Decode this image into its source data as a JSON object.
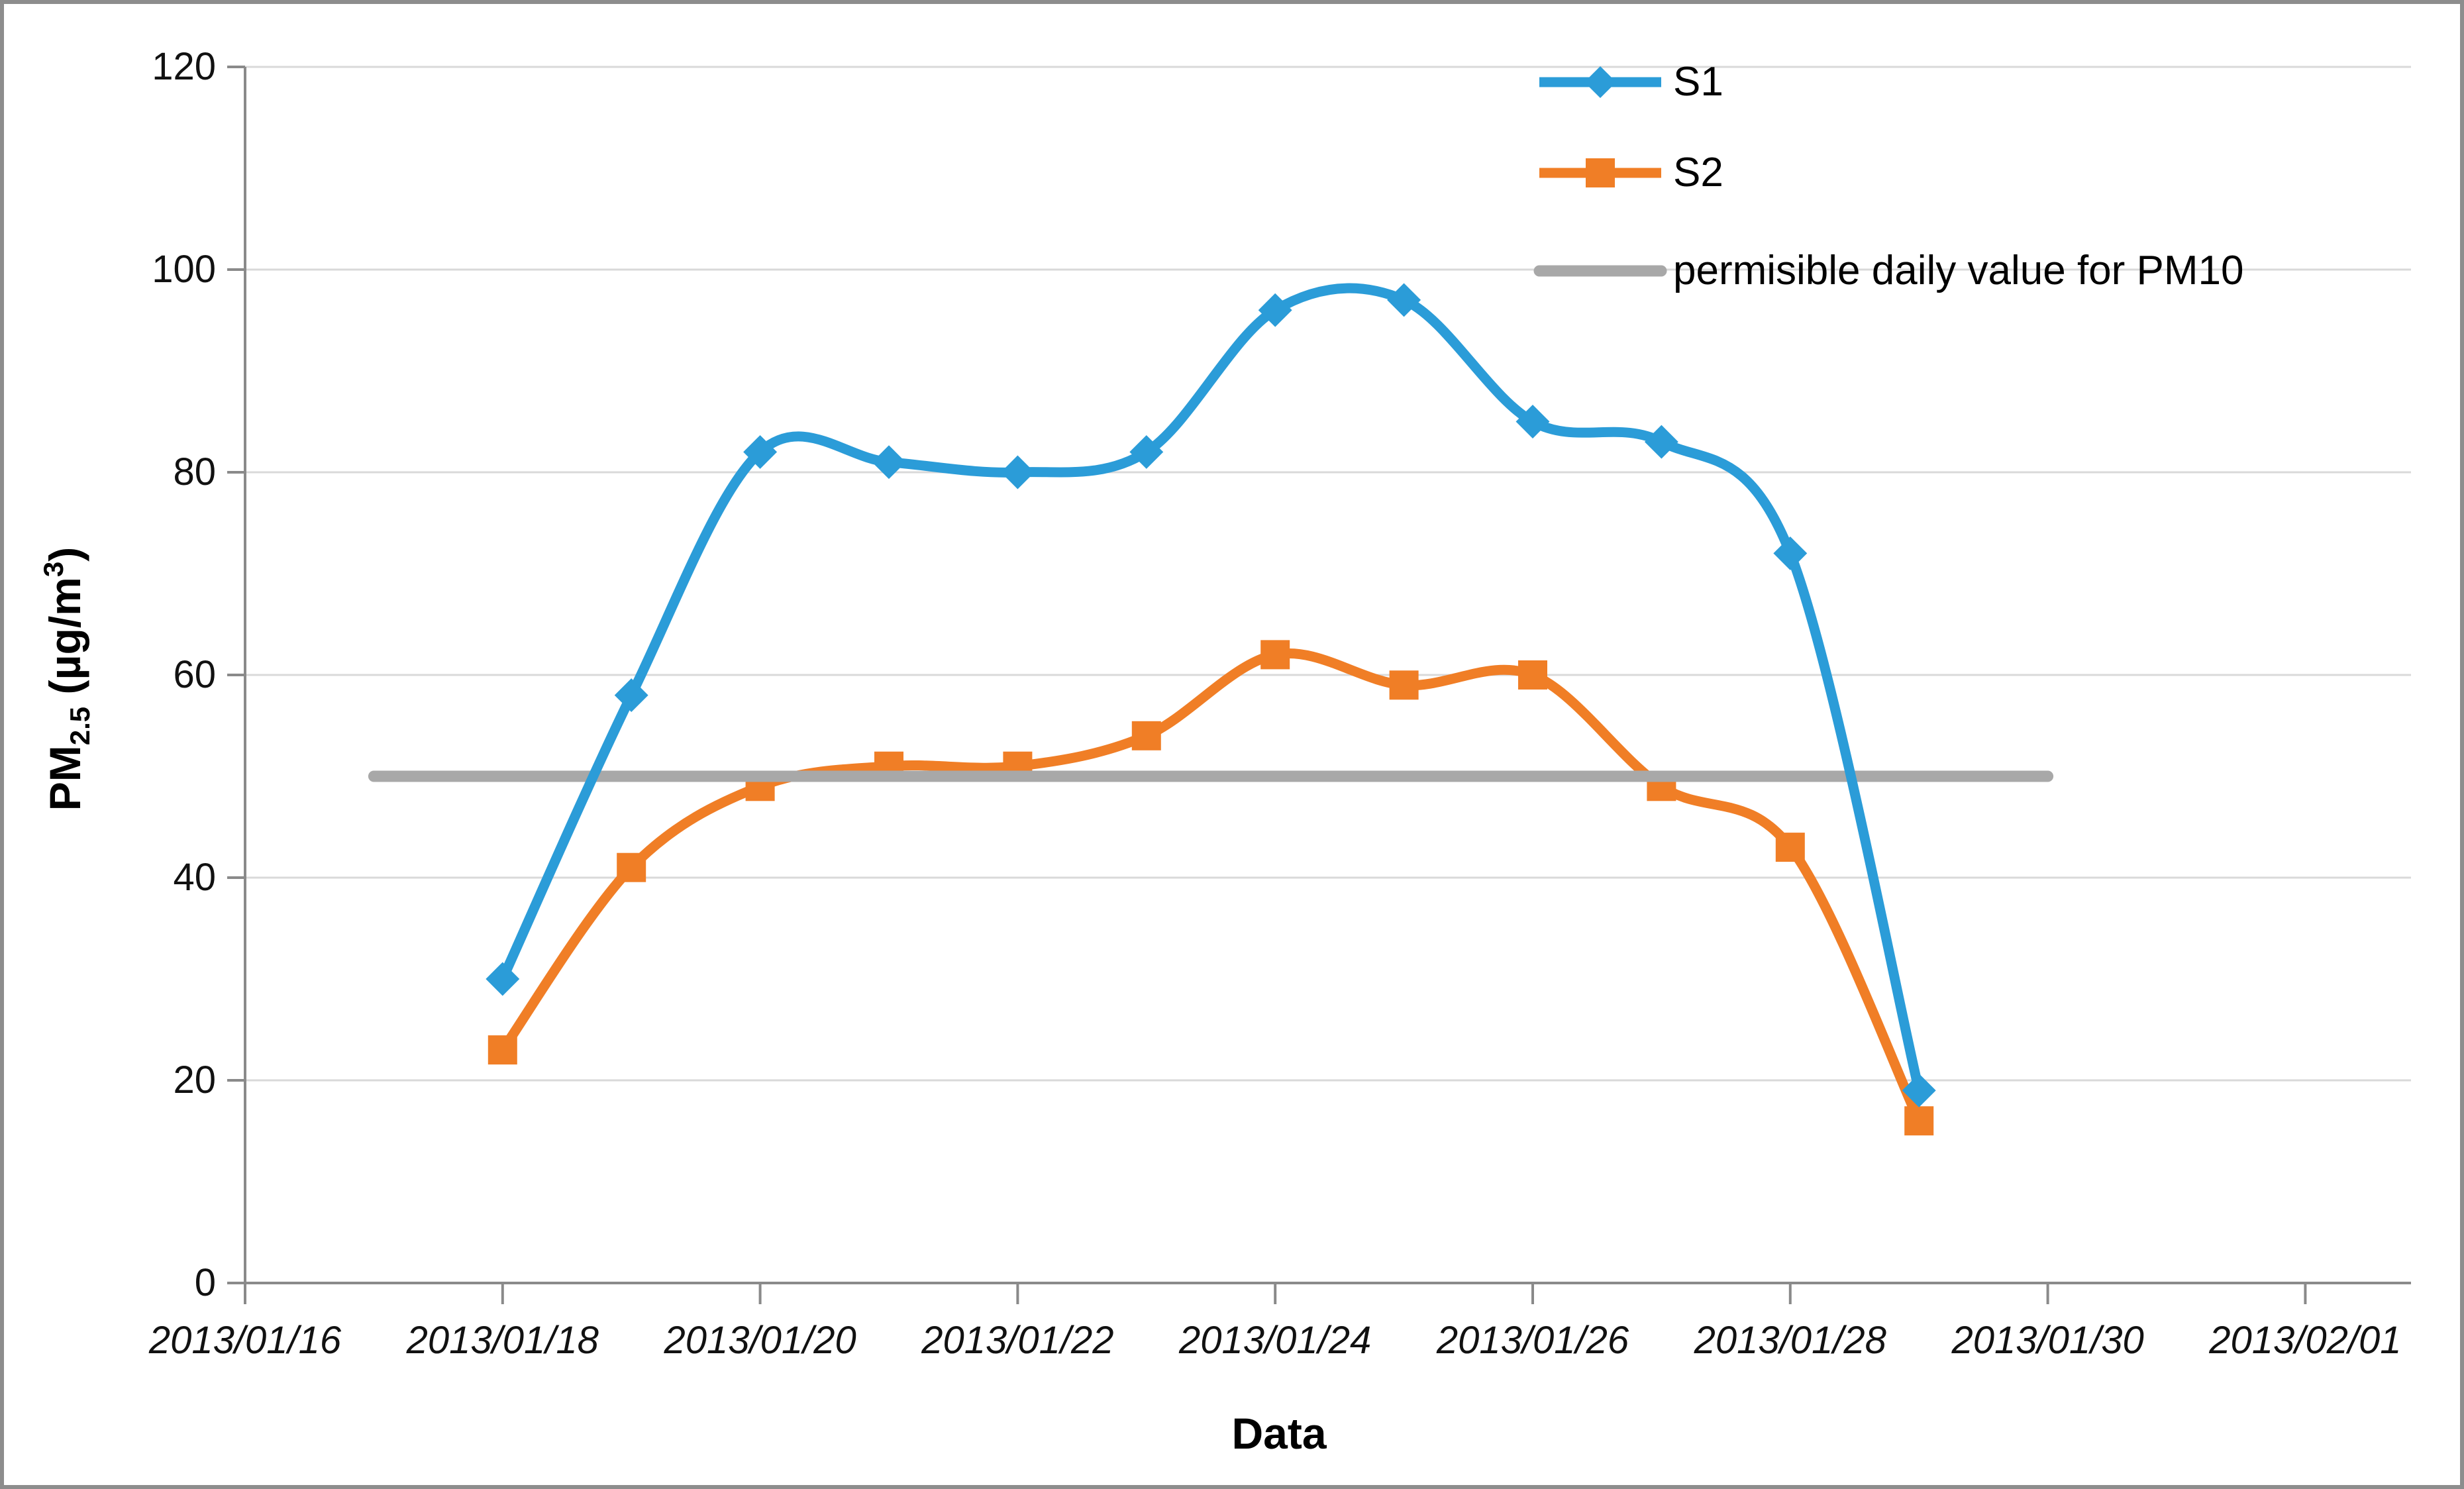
{
  "chart": {
    "y_axis": {
      "title_prefix": "PM",
      "title_sub": "2.5",
      "title_mid": "  (µg/m",
      "title_sup": "3",
      "title_suffix": ")",
      "ticks": [
        0,
        20,
        40,
        60,
        80,
        100,
        120
      ]
    },
    "x_axis": {
      "title": "Data",
      "tick_labels": [
        "2013/01/16",
        "2013/01/18",
        "2013/01/20",
        "2013/01/22",
        "2013/01/24",
        "2013/01/26",
        "2013/01/28",
        "2013/01/30",
        "2013/02/01"
      ]
    },
    "legend": {
      "items": [
        {
          "label": "S1"
        },
        {
          "label": "S2"
        },
        {
          "label": "permisible daily value for PM10"
        }
      ]
    }
  },
  "chart_data": {
    "type": "line",
    "title": "",
    "xlabel": "Data",
    "ylabel": "PM2.5 (µg/m³)",
    "ylim": [
      0,
      120
    ],
    "grid": true,
    "legend_position": "top-right",
    "smoothed_lines": true,
    "x_axis_start": "2013/01/16",
    "x_axis_end": "2013/02/01",
    "x": [
      "2013/01/18",
      "2013/01/19",
      "2013/01/20",
      "2013/01/21",
      "2013/01/22",
      "2013/01/23",
      "2013/01/24",
      "2013/01/25",
      "2013/01/26",
      "2013/01/27",
      "2013/01/28",
      "2013/01/29"
    ],
    "series": [
      {
        "name": "S1",
        "marker": "diamond",
        "values": [
          30,
          58,
          82,
          81,
          80,
          82,
          96,
          97,
          85,
          83,
          72,
          19
        ]
      },
      {
        "name": "S2",
        "marker": "square",
        "values": [
          23,
          41,
          49,
          51,
          51,
          54,
          62,
          59,
          60,
          49,
          43,
          16
        ]
      },
      {
        "name": "permisible daily value for PM10",
        "type": "reference-line",
        "value": 50,
        "x_start": "2013/01/17",
        "x_end": "2013/01/30"
      }
    ]
  },
  "colors": {
    "s1": "#2b9cd8",
    "s2": "#f07e26",
    "limit": "#a8a8a8",
    "gridline": "#d9d9d9",
    "axis": "#8a8a8a",
    "text": "#111111",
    "border": "#8d8d8d",
    "background": "#ffffff"
  }
}
